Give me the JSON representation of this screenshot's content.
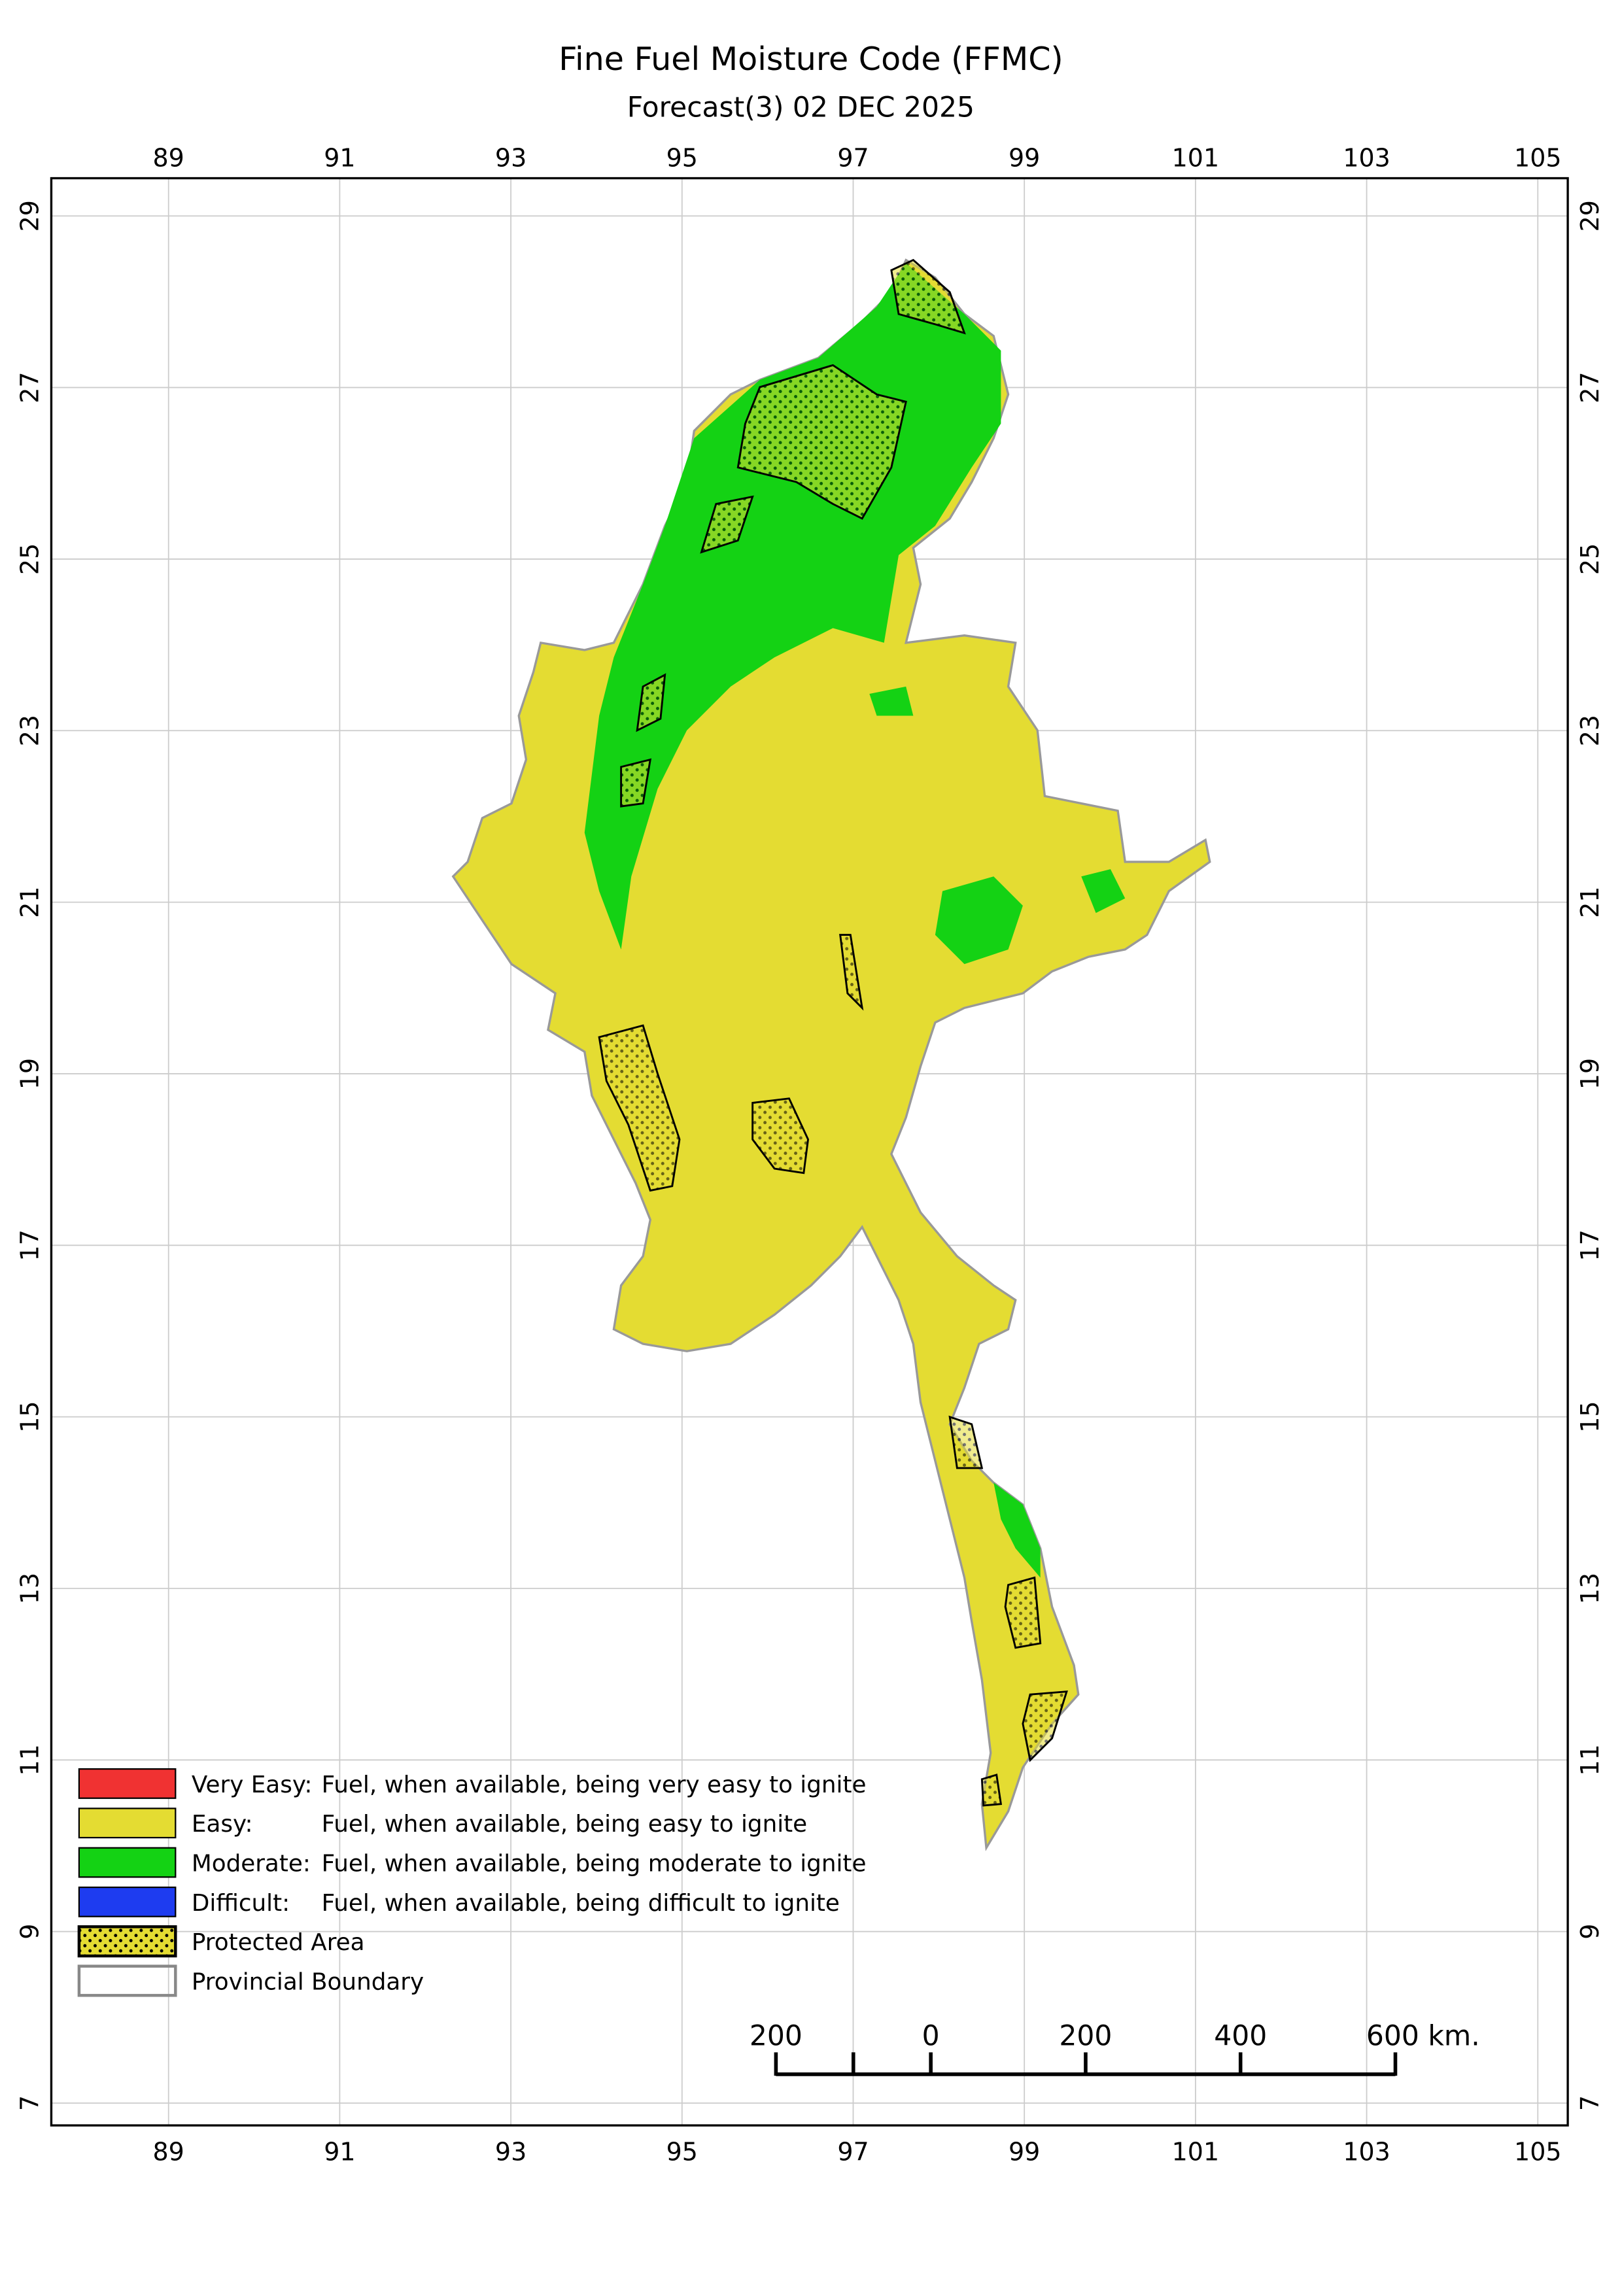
{
  "header": {
    "title": "Fine Fuel Moisture Code (FFMC)",
    "subtitle": "Forecast(3) 02 DEC 2025"
  },
  "map": {
    "xlim": [
      87.63,
      105.35
    ],
    "ylim": [
      6.74,
      29.44
    ],
    "lon_ticks": [
      89,
      91,
      93,
      95,
      97,
      99,
      101,
      103,
      105
    ],
    "lat_ticks": [
      7,
      9,
      11,
      13,
      15,
      17,
      19,
      21,
      23,
      25,
      27,
      29
    ],
    "grid": true
  },
  "legend": {
    "items": [
      {
        "label": "Very Easy:",
        "description": "Fuel, when available, being very easy to ignite",
        "color": "#f03232"
      },
      {
        "label": "Easy:",
        "description": "Fuel, when available, being easy to ignite",
        "color": "#e4dc32"
      },
      {
        "label": "Moderate:",
        "description": "Fuel, when available, being moderate to ignite",
        "color": "#14d214"
      },
      {
        "label": "Difficult:",
        "description": "Fuel, when available, being difficult to ignite",
        "color": "#1e3cf0"
      }
    ],
    "protected": "Protected Area",
    "boundary": "Provincial Boundary"
  },
  "scale_bar": {
    "ticks": [
      {
        "value": -200,
        "label": "200"
      },
      0,
      200,
      400,
      {
        "value": 600,
        "label": "600 km."
      }
    ]
  }
}
